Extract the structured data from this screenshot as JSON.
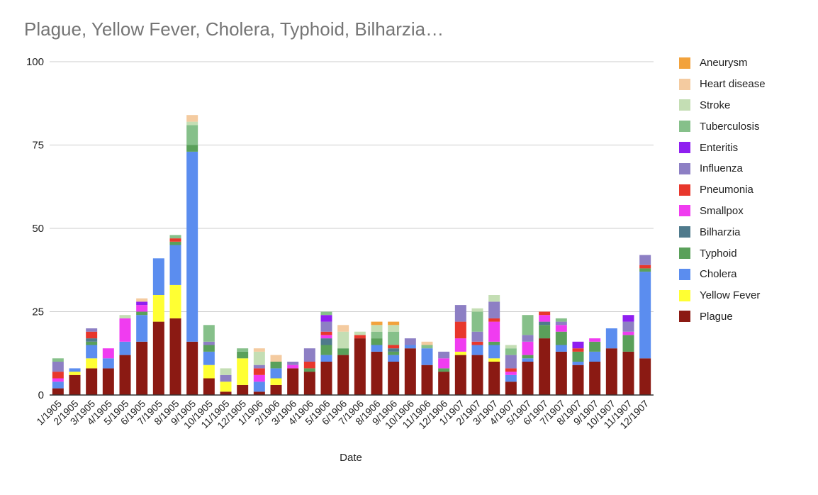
{
  "chart_data": {
    "type": "bar",
    "stacked": true,
    "title": "Plague, Yellow Fever, Cholera, Typhoid, Bilharzia…",
    "xlabel": "Date",
    "ylabel": "",
    "ylim": [
      0,
      100
    ],
    "yticks": [
      0,
      25,
      50,
      75,
      100
    ],
    "grid": true,
    "legend_position": "right",
    "categories": [
      "1/1905",
      "2/1905",
      "3/1905",
      "4/1905",
      "5/1905",
      "6/1905",
      "7/1905",
      "8/1905",
      "9/1905",
      "10/1905",
      "11/1905",
      "12/1905",
      "1/1906",
      "2/1906",
      "3/1906",
      "4/1906",
      "5/1906",
      "6/1906",
      "7/1906",
      "8/1906",
      "9/1906",
      "10/1906",
      "11/1906",
      "12/1906",
      "1/1907",
      "2/1907",
      "3/1907",
      "4/1907",
      "5/1907",
      "6/1907",
      "7/1907",
      "8/1907",
      "9/1907",
      "10/1907",
      "11/1907",
      "12/1907"
    ],
    "series": [
      {
        "name": "Plague",
        "color": "#8b1a13",
        "values": [
          2,
          6,
          8,
          8,
          12,
          16,
          22,
          23,
          16,
          5,
          1,
          3,
          1,
          3,
          8,
          7,
          10,
          12,
          17,
          13,
          10,
          14,
          9,
          7,
          12,
          12,
          10,
          4,
          10,
          17,
          13,
          9,
          10,
          14,
          13,
          11
        ]
      },
      {
        "name": "Yellow Fever",
        "color": "#ffff33",
        "values": [
          0,
          1,
          3,
          0,
          0,
          0,
          8,
          10,
          0,
          4,
          3,
          8,
          0,
          2,
          0,
          0,
          0,
          0,
          0,
          0,
          0,
          0,
          0,
          0,
          1,
          0,
          1,
          0,
          0,
          0,
          0,
          0,
          0,
          0,
          0,
          0
        ]
      },
      {
        "name": "Cholera",
        "color": "#5b8def",
        "values": [
          2,
          1,
          4,
          3,
          4,
          8,
          11,
          12,
          57,
          4,
          0,
          0,
          3,
          3,
          0,
          0,
          2,
          0,
          0,
          2,
          2,
          1,
          5,
          0,
          0,
          3,
          4,
          2,
          1,
          0,
          2,
          1,
          3,
          6,
          0,
          26
        ]
      },
      {
        "name": "Typhoid",
        "color": "#5aa05a",
        "values": [
          0,
          0,
          1,
          0,
          0,
          1,
          0,
          1,
          2,
          2,
          0,
          2,
          0,
          2,
          0,
          1,
          3,
          2,
          0,
          2,
          1,
          0,
          0,
          1,
          0,
          0,
          1,
          0,
          1,
          4,
          4,
          3,
          3,
          0,
          5,
          1
        ]
      },
      {
        "name": "Bilharzia",
        "color": "#4f7a8c",
        "values": [
          0,
          0,
          1,
          0,
          0,
          0,
          0,
          0,
          0,
          0,
          0,
          0,
          0,
          0,
          0,
          0,
          2,
          0,
          0,
          0,
          1,
          0,
          0,
          0,
          0,
          0,
          0,
          0,
          0,
          1,
          0,
          0,
          0,
          0,
          0,
          0
        ]
      },
      {
        "name": "Smallpox",
        "color": "#f03cf0",
        "values": [
          1,
          0,
          0,
          3,
          7,
          2,
          0,
          0,
          0,
          0,
          0,
          0,
          2,
          0,
          1,
          0,
          1,
          0,
          0,
          0,
          0,
          0,
          0,
          3,
          4,
          0,
          6,
          1,
          4,
          2,
          2,
          0,
          1,
          0,
          1,
          0
        ]
      },
      {
        "name": "Pneumonia",
        "color": "#e8372c",
        "values": [
          2,
          0,
          2,
          0,
          0,
          0,
          0,
          1,
          0,
          0,
          0,
          0,
          2,
          0,
          0,
          2,
          1,
          0,
          1,
          0,
          1,
          0,
          0,
          0,
          5,
          1,
          1,
          1,
          0,
          1,
          0,
          1,
          0,
          0,
          0,
          1
        ]
      },
      {
        "name": "Influenza",
        "color": "#8d7fc4",
        "values": [
          3,
          0,
          1,
          0,
          0,
          0,
          0,
          0,
          0,
          1,
          2,
          0,
          1,
          0,
          1,
          4,
          3,
          0,
          0,
          0,
          0,
          2,
          0,
          2,
          5,
          3,
          5,
          4,
          2,
          0,
          1,
          0,
          0,
          0,
          3,
          3
        ]
      },
      {
        "name": "Enteritis",
        "color": "#8f1ff0",
        "values": [
          0,
          0,
          0,
          0,
          0,
          1,
          0,
          0,
          0,
          0,
          0,
          0,
          0,
          0,
          0,
          0,
          2,
          0,
          0,
          0,
          0,
          0,
          0,
          0,
          0,
          0,
          0,
          0,
          0,
          0,
          0,
          2,
          0,
          0,
          2,
          0
        ]
      },
      {
        "name": "Tuberculosis",
        "color": "#86c08a",
        "values": [
          1,
          0,
          0,
          0,
          0,
          0,
          0,
          1,
          6,
          5,
          0,
          1,
          0,
          0,
          0,
          0,
          1,
          0,
          0,
          2,
          4,
          0,
          1,
          0,
          0,
          6,
          0,
          2,
          6,
          0,
          1,
          0,
          0,
          0,
          0,
          0
        ]
      },
      {
        "name": "Stroke",
        "color": "#c4deb4",
        "values": [
          0,
          0,
          0,
          0,
          1,
          0,
          0,
          0,
          1,
          0,
          2,
          0,
          4,
          0,
          0,
          0,
          0,
          5,
          1,
          2,
          2,
          0,
          0,
          0,
          0,
          1,
          2,
          1,
          0,
          0,
          0,
          0,
          0,
          0,
          0,
          0
        ]
      },
      {
        "name": "Heart disease",
        "color": "#f4cba0",
        "values": [
          0,
          0,
          0,
          0,
          0,
          1,
          0,
          0,
          2,
          0,
          0,
          0,
          1,
          2,
          0,
          0,
          0,
          2,
          0,
          0,
          0,
          0,
          1,
          0,
          0,
          0,
          0,
          0,
          0,
          0,
          0,
          0,
          0,
          0,
          0,
          0
        ]
      },
      {
        "name": "Aneurysm",
        "color": "#f2a23c",
        "values": [
          0,
          0,
          0,
          0,
          0,
          0,
          0,
          0,
          0,
          0,
          0,
          0,
          0,
          0,
          0,
          0,
          0,
          0,
          0,
          1,
          1,
          0,
          0,
          0,
          0,
          0,
          0,
          0,
          0,
          0,
          0,
          0,
          0,
          0,
          0,
          0
        ]
      }
    ]
  }
}
